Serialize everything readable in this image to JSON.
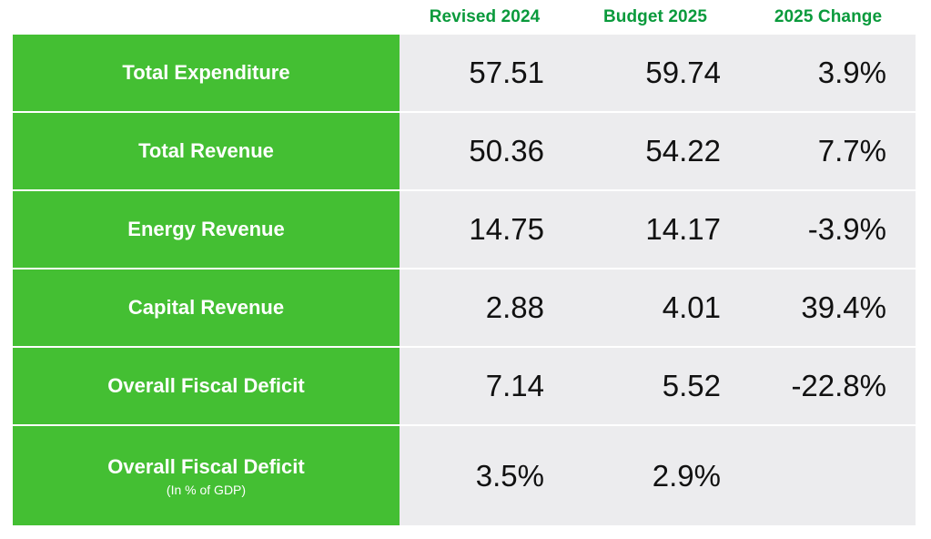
{
  "chart_data": {
    "type": "table",
    "columns": [
      "Revised 2024",
      "Budget 2025",
      "2025 Change"
    ],
    "rows": [
      {
        "label": "Total Expenditure",
        "sublabel": "",
        "values": [
          "57.51",
          "59.74",
          "3.9%"
        ]
      },
      {
        "label": "Total Revenue",
        "sublabel": "",
        "values": [
          "50.36",
          "54.22",
          "7.7%"
        ]
      },
      {
        "label": "Energy Revenue",
        "sublabel": "",
        "values": [
          "14.75",
          "14.17",
          "-3.9%"
        ]
      },
      {
        "label": "Capital Revenue",
        "sublabel": "",
        "values": [
          "2.88",
          "4.01",
          "39.4%"
        ]
      },
      {
        "label": "Overall Fiscal Deficit",
        "sublabel": "",
        "values": [
          "7.14",
          "5.52",
          "-22.8%"
        ]
      },
      {
        "label": "Overall Fiscal Deficit",
        "sublabel": "(In % of GDP)",
        "values": [
          "3.5%",
          "2.9%",
          ""
        ]
      }
    ]
  },
  "colors": {
    "header_text": "#0a9a3c",
    "label_bg": "#44bf33",
    "value_bg": "#ececee"
  }
}
